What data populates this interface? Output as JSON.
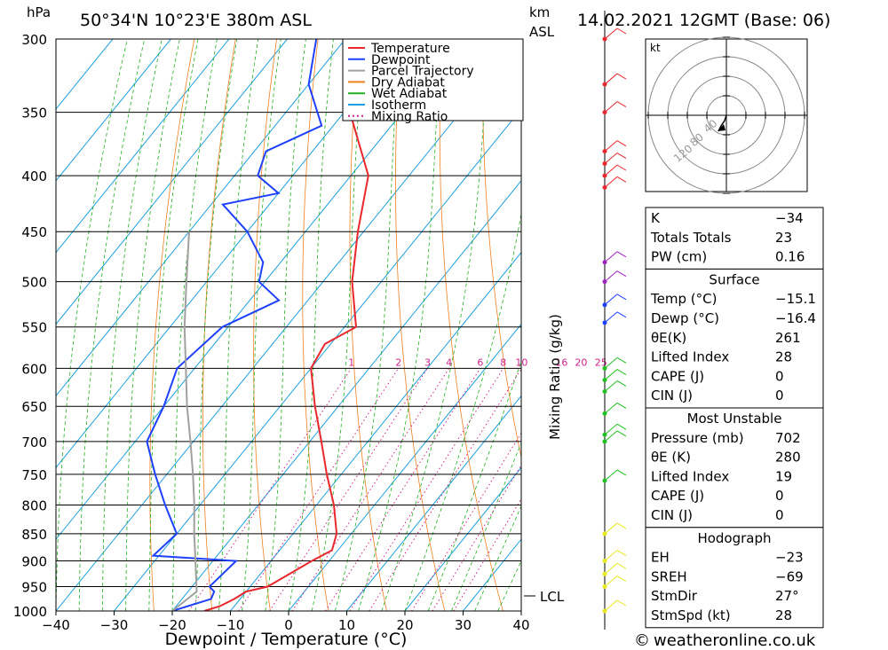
{
  "header": {
    "location": "50°34'N  10°23'E  380m  ASL",
    "datetime": "14.02.2021  12GMT  (Base: 06)",
    "pressure_unit": "hPa",
    "km_unit": "km",
    "asl_label": "ASL"
  },
  "chart_data": {
    "type": "line",
    "xlabel": "Dewpoint / Temperature (°C)",
    "mixing_label": "Mixing Ratio (g/kg)",
    "x_ticks": [
      -40,
      -30,
      -20,
      -10,
      0,
      10,
      20,
      30,
      40
    ],
    "xlim": [
      -40,
      40
    ],
    "pressure_levels": [
      300,
      350,
      400,
      450,
      500,
      550,
      600,
      650,
      700,
      750,
      800,
      850,
      900,
      950,
      1000
    ],
    "ylim": [
      1000,
      300
    ],
    "y_scale": "log",
    "skew": "skew-T",
    "mixing_ratios": [
      1,
      2,
      3,
      4,
      6,
      8,
      10,
      16,
      20,
      25
    ],
    "mixing_ratio_labels": [
      "1",
      "2",
      "3",
      "4",
      "6",
      "8",
      "10",
      "16",
      "20",
      "25"
    ],
    "lcl_label": "LCL",
    "lcl_pressure": 960,
    "series": [
      {
        "name": "Temperature",
        "color": "#e8282d",
        "points": [
          [
            1000,
            -14.5
          ],
          [
            990,
            -12.5
          ],
          [
            975,
            -11
          ],
          [
            960,
            -10
          ],
          [
            950,
            -7
          ],
          [
            900,
            -3
          ],
          [
            880,
            -1
          ],
          [
            850,
            -2.5
          ],
          [
            800,
            -7
          ],
          [
            750,
            -12.5
          ],
          [
            700,
            -18
          ],
          [
            650,
            -24
          ],
          [
            600,
            -30
          ],
          [
            570,
            -31
          ],
          [
            550,
            -28
          ],
          [
            500,
            -35
          ],
          [
            450,
            -41
          ],
          [
            400,
            -47
          ],
          [
            350,
            -59
          ],
          [
            330,
            -63
          ],
          [
            300,
            -69
          ]
        ]
      },
      {
        "name": "Dewpoint",
        "color": "#1e40ff",
        "points": [
          [
            1000,
            -20
          ],
          [
            975,
            -15
          ],
          [
            960,
            -15.5
          ],
          [
            950,
            -17
          ],
          [
            900,
            -16
          ],
          [
            890,
            -31
          ],
          [
            850,
            -30
          ],
          [
            800,
            -36
          ],
          [
            750,
            -42
          ],
          [
            700,
            -48
          ],
          [
            650,
            -50
          ],
          [
            600,
            -53
          ],
          [
            550,
            -51
          ],
          [
            520,
            -45
          ],
          [
            500,
            -51
          ],
          [
            480,
            -53
          ],
          [
            450,
            -60
          ],
          [
            425,
            -68
          ],
          [
            415,
            -60
          ],
          [
            400,
            -66
          ],
          [
            380,
            -68
          ],
          [
            360,
            -62
          ],
          [
            330,
            -70
          ],
          [
            300,
            -75
          ]
        ]
      },
      {
        "name": "Parcel Trajectory",
        "color": "#a0a0a0",
        "points": [
          [
            1000,
            -20
          ],
          [
            960,
            -18.5
          ],
          [
            900,
            -23
          ],
          [
            850,
            -27
          ],
          [
            800,
            -31
          ],
          [
            750,
            -35.5
          ],
          [
            700,
            -40.5
          ],
          [
            650,
            -46
          ],
          [
            600,
            -51.5
          ],
          [
            550,
            -57.5
          ],
          [
            500,
            -63.5
          ],
          [
            450,
            -70
          ]
        ]
      }
    ]
  },
  "legend": {
    "items": [
      {
        "label": "Temperature",
        "color": "#e8282d",
        "style": "solid"
      },
      {
        "label": "Dewpoint",
        "color": "#1e40ff",
        "style": "solid"
      },
      {
        "label": "Parcel Trajectory",
        "color": "#a0a0a0",
        "style": "solid"
      },
      {
        "label": "Dry Adiabat",
        "color": "#f08020",
        "style": "solid"
      },
      {
        "label": "Wet Adiabat",
        "color": "#20b020",
        "style": "solid"
      },
      {
        "label": "Isotherm",
        "color": "#1ea0e0",
        "style": "solid"
      },
      {
        "label": "Mixing Ratio",
        "color": "#d0208c",
        "style": "dotted"
      }
    ]
  },
  "hodograph": {
    "unit": "kt",
    "ring_labels": [
      "40",
      "80",
      "120"
    ]
  },
  "indices": {
    "general": [
      {
        "label": "K",
        "value": "-34"
      },
      {
        "label": "Totals Totals",
        "value": "23"
      },
      {
        "label": "PW (cm)",
        "value": "0.16"
      }
    ],
    "surface_title": "Surface",
    "surface": [
      {
        "label": "Temp (°C)",
        "value": "-15.1"
      },
      {
        "label": "Dewp (°C)",
        "value": "-16.4"
      },
      {
        "label": "θE(K)",
        "value": "261"
      },
      {
        "label": "Lifted Index",
        "value": "28"
      },
      {
        "label": "CAPE (J)",
        "value": "0"
      },
      {
        "label": "CIN (J)",
        "value": "0"
      }
    ],
    "mu_title": "Most Unstable",
    "most_unstable": [
      {
        "label": "Pressure (mb)",
        "value": "702"
      },
      {
        "label": "θE (K)",
        "value": "280"
      },
      {
        "label": "Lifted Index",
        "value": "19"
      },
      {
        "label": "CAPE (J)",
        "value": "0"
      },
      {
        "label": "CIN (J)",
        "value": "0"
      }
    ],
    "hodo_title": "Hodograph",
    "hodo": [
      {
        "label": "EH",
        "value": "-23"
      },
      {
        "label": "SREH",
        "value": "-69"
      },
      {
        "label": "StmDir",
        "value": "27°"
      },
      {
        "label": "StmSpd (kt)",
        "value": "28"
      }
    ]
  },
  "wind_profile": {
    "colors": {
      "upper": "#e8282d",
      "mid_upper": "#a020c0",
      "mid": "#1e40ff",
      "low": "#20c020",
      "surface": "#e8e820"
    },
    "levels": [
      {
        "p": 300,
        "c": "upper"
      },
      {
        "p": 330,
        "c": "upper"
      },
      {
        "p": 350,
        "c": "upper"
      },
      {
        "p": 380,
        "c": "upper"
      },
      {
        "p": 390,
        "c": "upper"
      },
      {
        "p": 400,
        "c": "upper"
      },
      {
        "p": 410,
        "c": "upper"
      },
      {
        "p": 480,
        "c": "mid_upper"
      },
      {
        "p": 500,
        "c": "mid_upper"
      },
      {
        "p": 525,
        "c": "mid"
      },
      {
        "p": 545,
        "c": "mid"
      },
      {
        "p": 600,
        "c": "low"
      },
      {
        "p": 615,
        "c": "low"
      },
      {
        "p": 630,
        "c": "low"
      },
      {
        "p": 660,
        "c": "low"
      },
      {
        "p": 690,
        "c": "low"
      },
      {
        "p": 700,
        "c": "low"
      },
      {
        "p": 760,
        "c": "low"
      },
      {
        "p": 850,
        "c": "surface"
      },
      {
        "p": 900,
        "c": "surface"
      },
      {
        "p": 925,
        "c": "surface"
      },
      {
        "p": 950,
        "c": "surface"
      },
      {
        "p": 1000,
        "c": "surface"
      }
    ]
  },
  "footer": {
    "copyright_symbol": "©",
    "site": "weatheronline.co.uk"
  }
}
